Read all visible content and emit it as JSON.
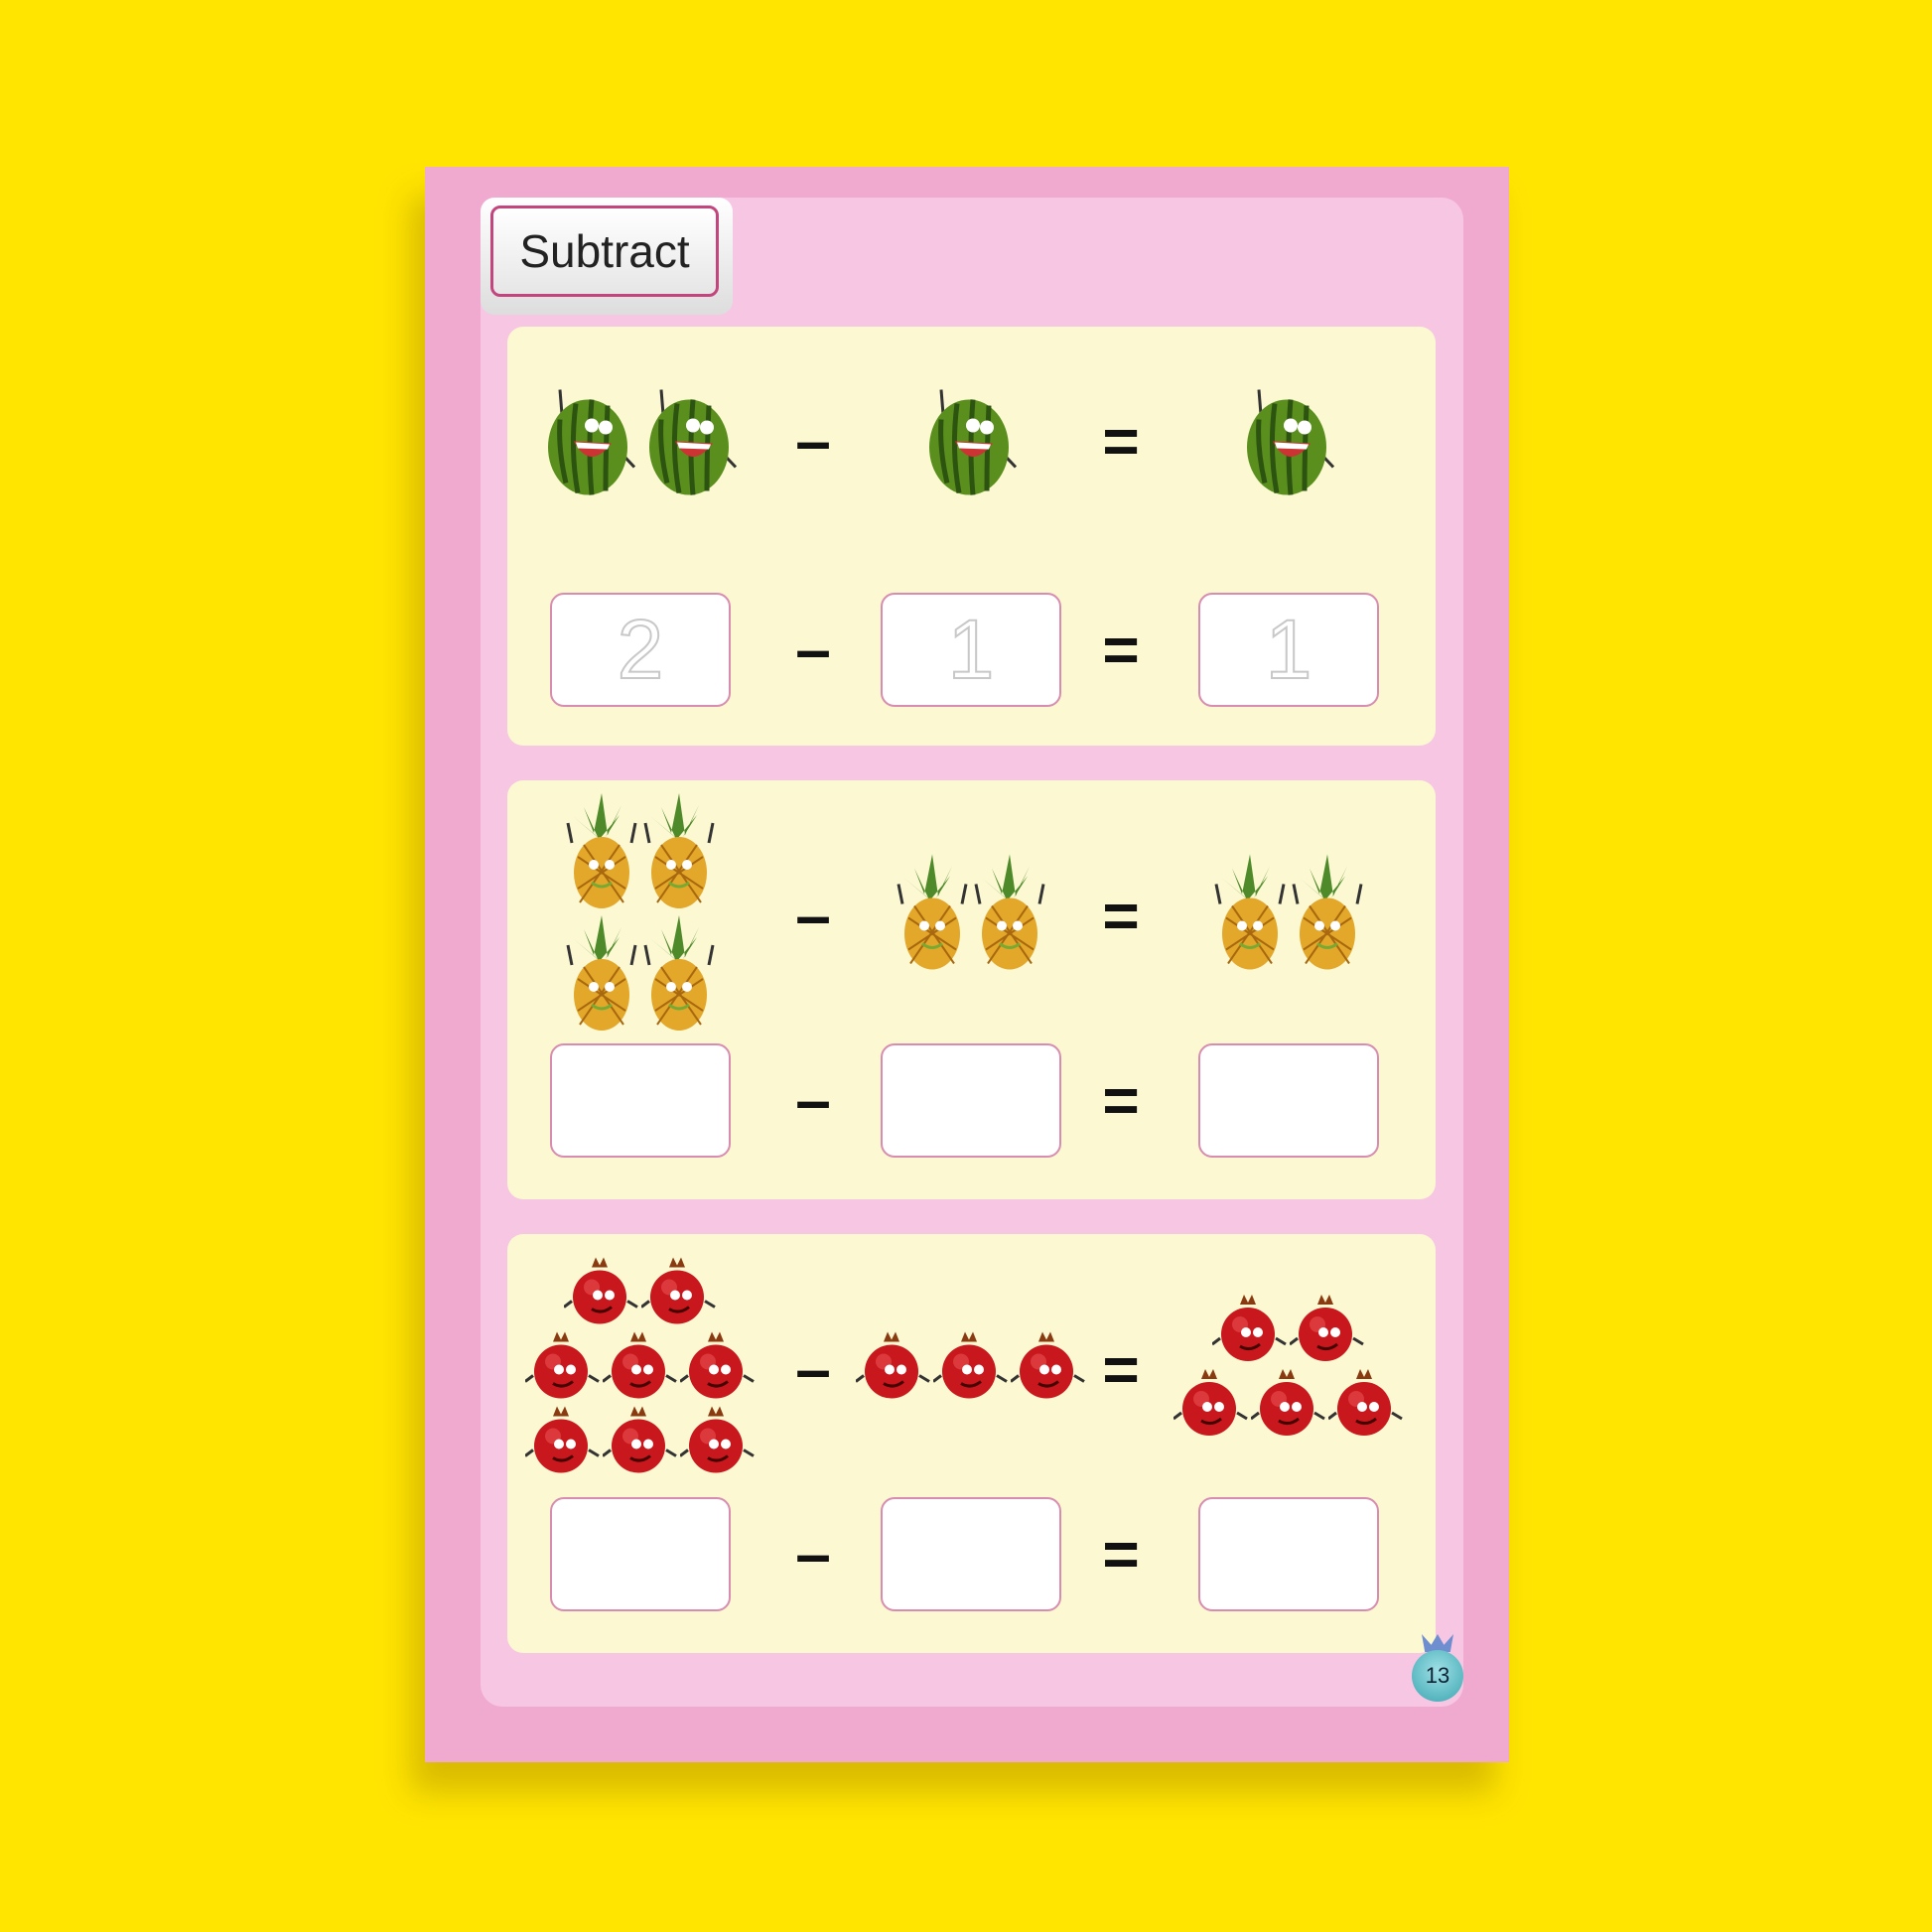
{
  "title": "Subtract",
  "page_number": "13",
  "colors": {
    "background": "#ffe500",
    "page": "#f0a9cf",
    "section": "#fbf8d2",
    "box_border": "#d88cb0"
  },
  "problems": [
    {
      "fruit": "watermelon",
      "minuend": 2,
      "subtrahend": 1,
      "difference": 1,
      "answers": [
        "2",
        "1",
        "1"
      ],
      "minus": "–",
      "equals": "="
    },
    {
      "fruit": "pineapple",
      "minuend": 4,
      "subtrahend": 2,
      "difference": 2,
      "answers": [
        "",
        "",
        ""
      ],
      "minus": "–",
      "equals": "="
    },
    {
      "fruit": "pomegranate",
      "minuend": 8,
      "subtrahend": 3,
      "difference": 5,
      "answers": [
        "",
        "",
        ""
      ],
      "minus": "–",
      "equals": "="
    }
  ]
}
